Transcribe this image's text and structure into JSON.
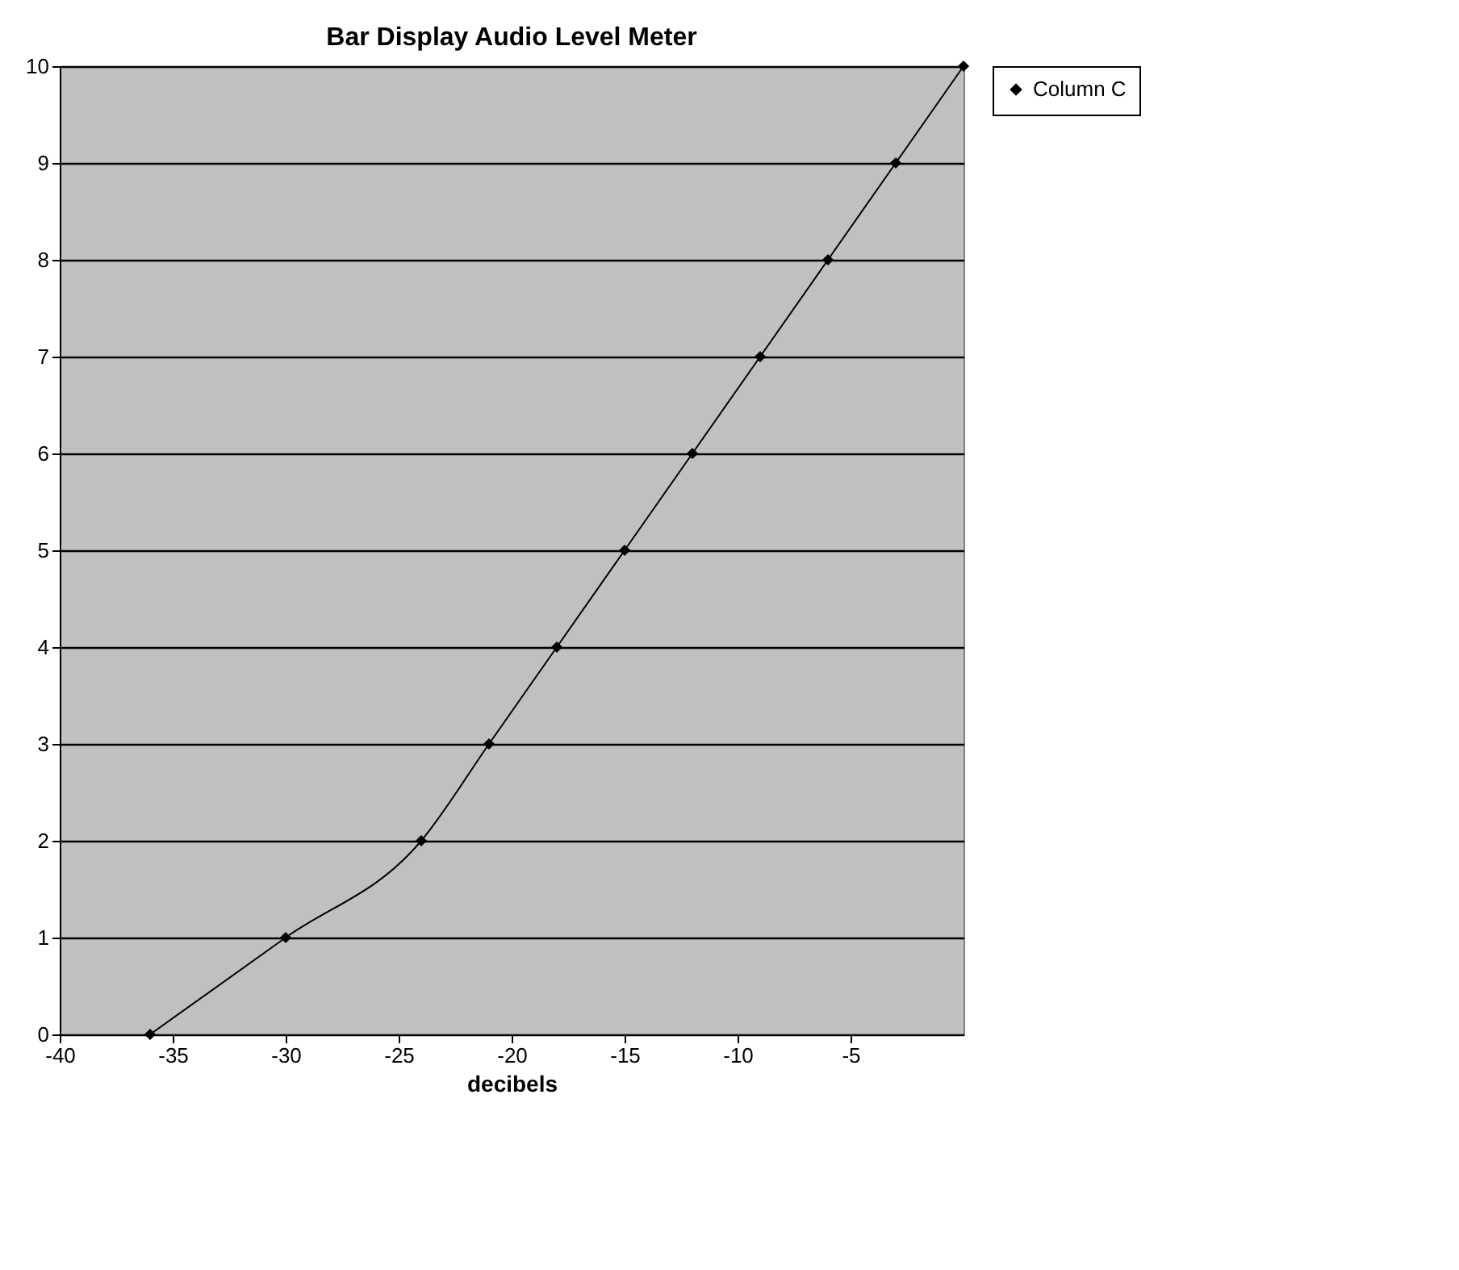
{
  "chart_data": {
    "type": "line",
    "title": "Bar Display Audio Level Meter",
    "xlabel": "decibels",
    "x": [
      -36,
      -30,
      -24,
      -21,
      -18,
      -15,
      -12,
      -9,
      -6,
      -3,
      0
    ],
    "series": [
      {
        "name": "Column C",
        "color": "#000000",
        "values": [
          0,
          1,
          2,
          3,
          4,
          5,
          6,
          7,
          8,
          9,
          10
        ]
      }
    ],
    "xlim": [
      -40,
      0
    ],
    "xticks": [
      -40,
      -35,
      -30,
      -25,
      -20,
      -15,
      -10,
      -5
    ],
    "ylim": [
      0,
      10
    ],
    "yticks": [
      0,
      1,
      2,
      3,
      4,
      5,
      6,
      7,
      8,
      9,
      10
    ],
    "grid": "y",
    "legend": "right",
    "marker": "diamond",
    "line_style": "solid"
  }
}
